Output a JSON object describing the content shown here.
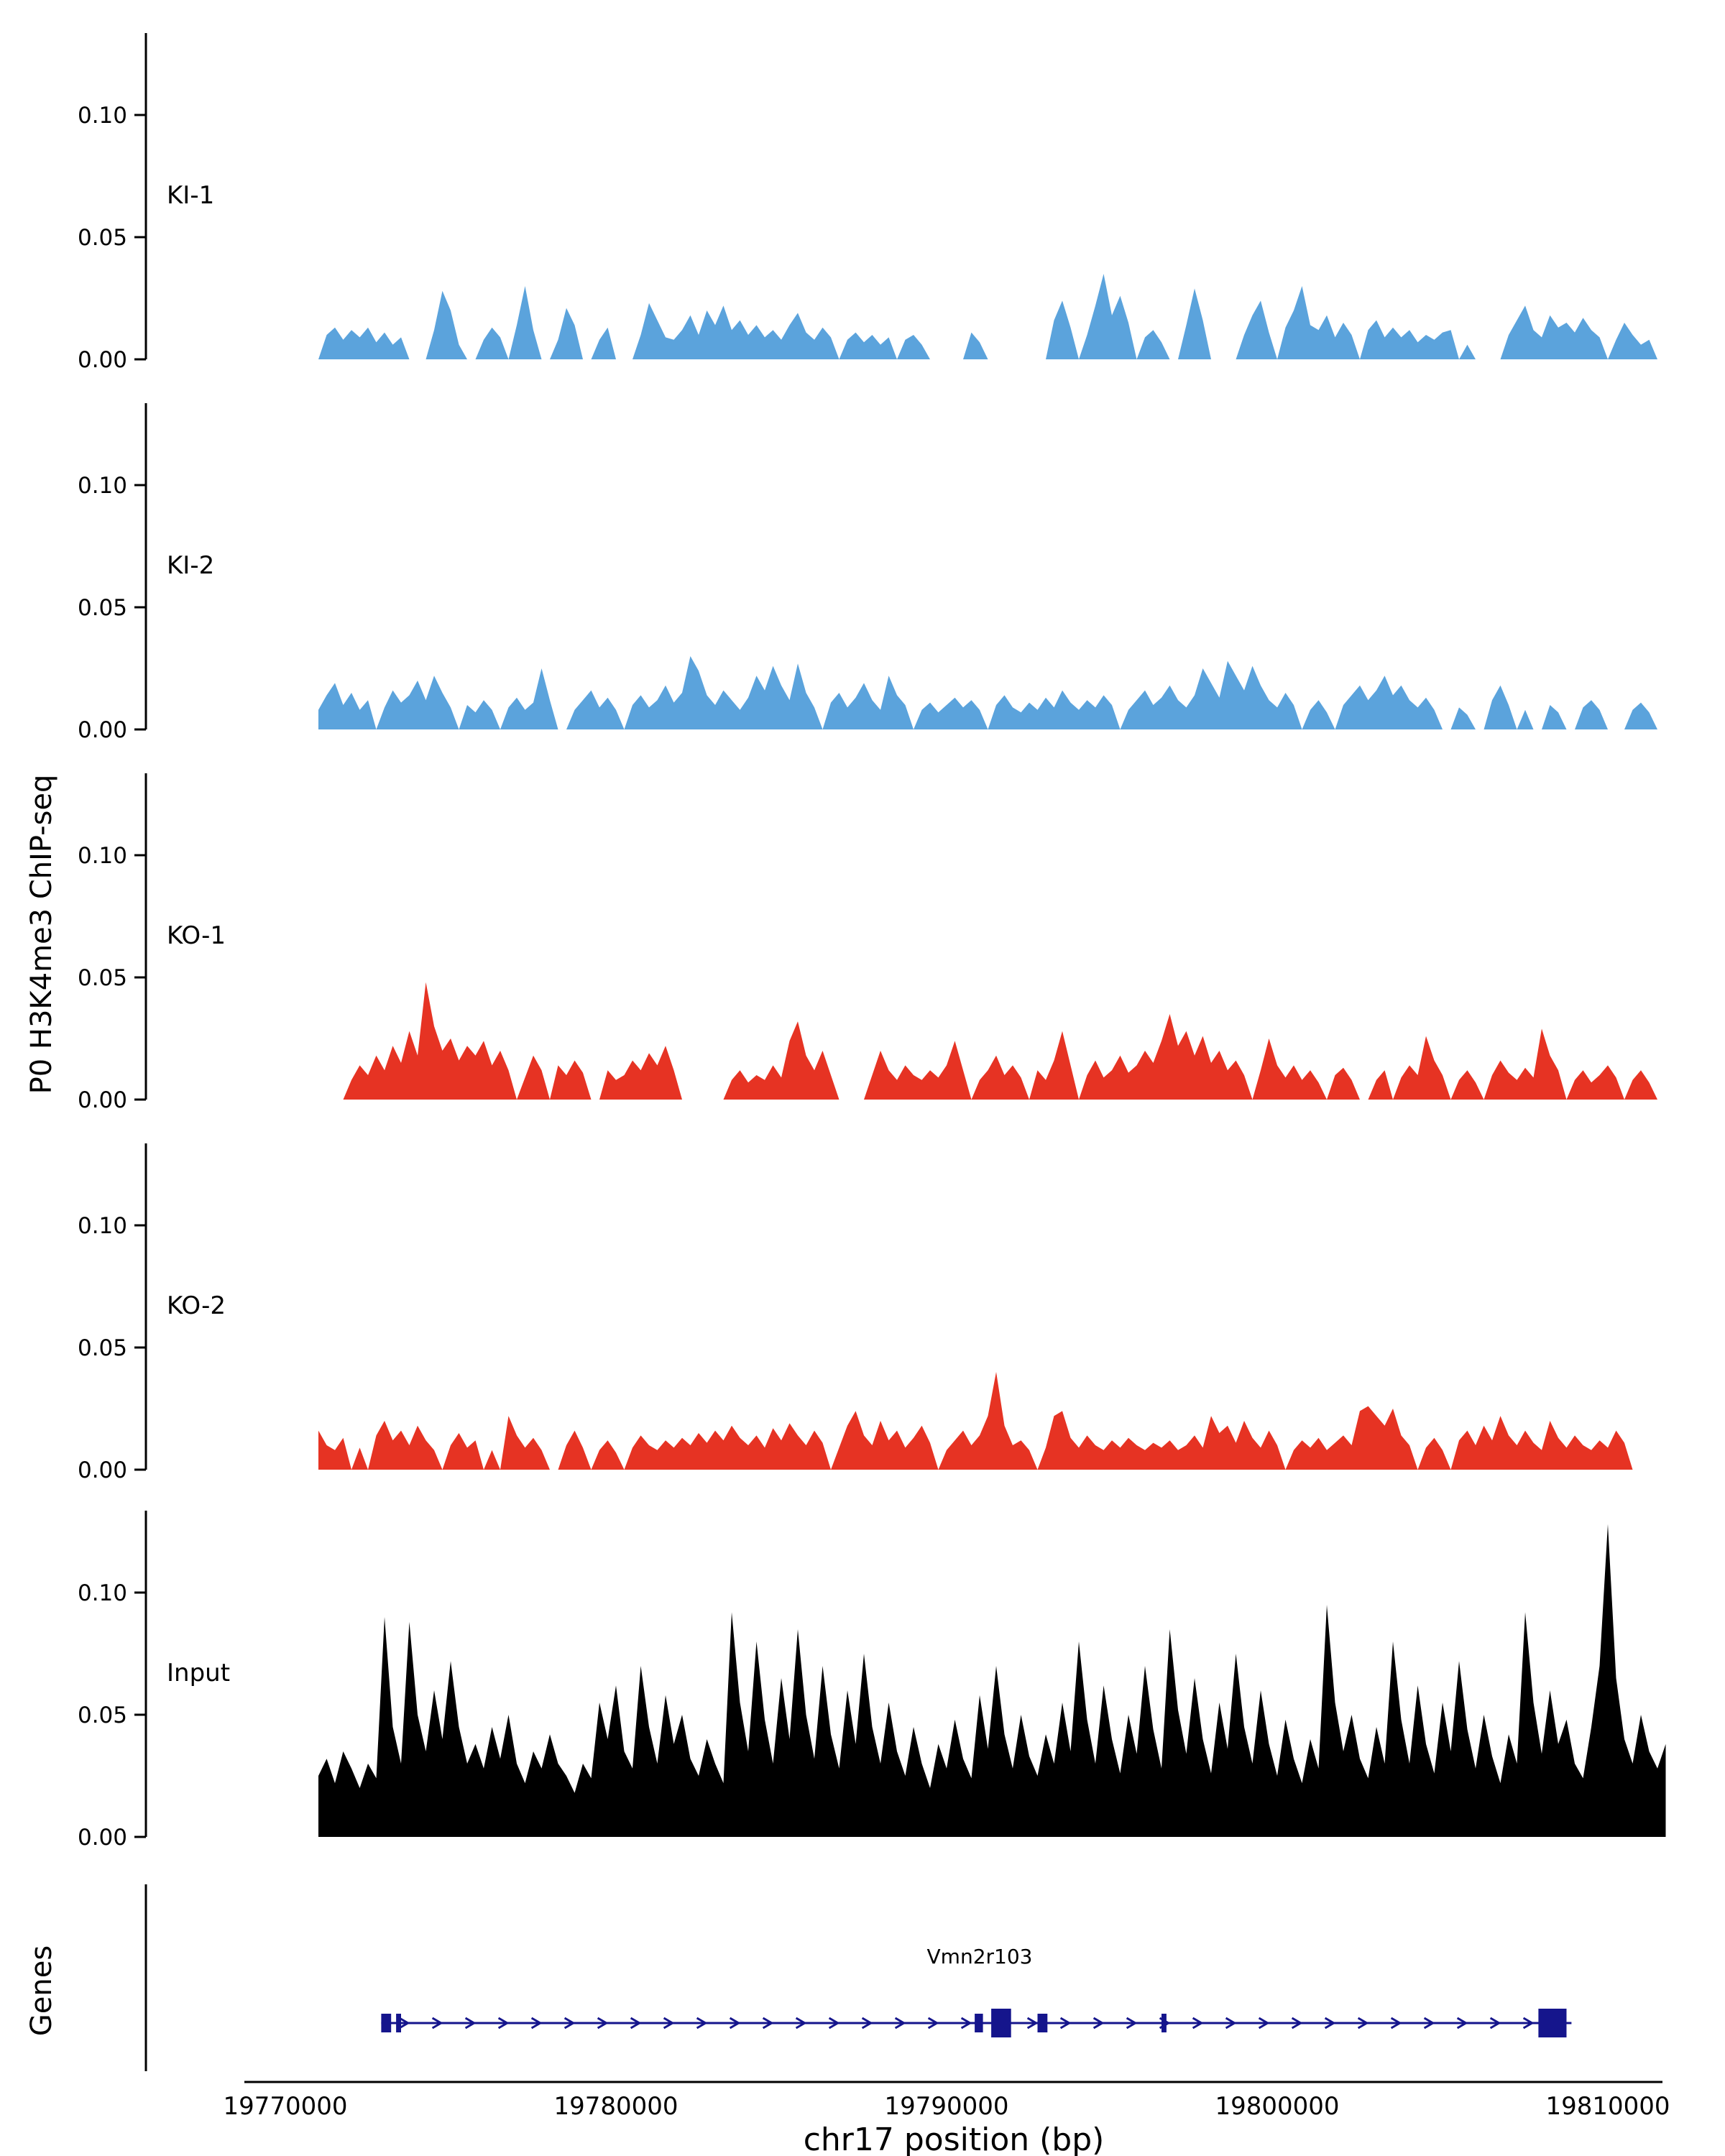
{
  "figure": {
    "ylabel_left": "P0 H3K4me3 ChIP-seq",
    "genes_label": "Genes",
    "xlabel": "chr17 position (bp)"
  },
  "chart_data": {
    "type": "area",
    "title": "",
    "xlabel": "chr17 position (bp)",
    "ylabel": "P0 H3K4me3 ChIP-seq",
    "legend": "none",
    "grid": false,
    "x_start": 19771000,
    "x_step": 250,
    "xlim": [
      19768500,
      19812000
    ],
    "ylim": [
      0,
      0.13
    ],
    "value_unit": 0.001,
    "x_ticks": [
      {
        "bp": 19770000,
        "label": "19770000"
      },
      {
        "bp": 19780000,
        "label": "19780000"
      },
      {
        "bp": 19790000,
        "label": "19790000"
      },
      {
        "bp": 19800000,
        "label": "19800000"
      },
      {
        "bp": 19810000,
        "label": "19810000"
      }
    ],
    "y_ticks": [
      {
        "value": 0.0,
        "label": "0.00"
      },
      {
        "value": 0.05,
        "label": "0.05"
      },
      {
        "value": 0.1,
        "label": "0.10"
      }
    ],
    "tracks": [
      {
        "label": "KI-1",
        "group": "KI",
        "color": "#5BA3DC",
        "values": [
          0,
          10,
          13,
          8,
          12,
          9,
          13,
          7,
          11,
          6,
          9,
          0,
          0,
          0,
          12,
          28,
          20,
          6,
          0,
          0,
          8,
          13,
          9,
          0,
          14,
          30,
          12,
          0,
          0,
          8,
          21,
          14,
          0,
          0,
          8,
          13,
          0,
          0,
          0,
          10,
          23,
          16,
          9,
          8,
          12,
          18,
          10,
          20,
          14,
          22,
          12,
          16,
          10,
          14,
          9,
          12,
          8,
          14,
          19,
          11,
          8,
          13,
          9,
          0,
          8,
          11,
          7,
          10,
          6,
          9,
          0,
          8,
          10,
          6,
          0,
          0,
          0,
          0,
          0,
          11,
          7,
          0,
          0,
          0,
          0,
          0,
          0,
          0,
          0,
          16,
          24,
          13,
          0,
          10,
          22,
          35,
          18,
          26,
          15,
          0,
          9,
          12,
          7,
          0,
          0,
          14,
          29,
          16,
          0,
          0,
          0,
          0,
          10,
          18,
          24,
          11,
          0,
          13,
          20,
          30,
          14,
          12,
          18,
          9,
          15,
          10,
          0,
          12,
          16,
          9,
          13,
          9,
          12,
          7,
          10,
          8,
          11,
          12,
          0,
          6,
          0,
          0,
          0,
          0,
          10,
          16,
          22,
          12,
          9,
          18,
          13,
          15,
          11,
          17,
          12,
          9,
          0,
          8,
          15,
          10,
          6,
          8,
          0,
          0
        ]
      },
      {
        "label": "KI-2",
        "group": "KI",
        "color": "#5BA3DC",
        "values": [
          8,
          14,
          19,
          10,
          15,
          8,
          12,
          0,
          9,
          16,
          11,
          14,
          20,
          12,
          22,
          15,
          9,
          0,
          10,
          7,
          12,
          8,
          0,
          9,
          13,
          8,
          11,
          25,
          12,
          0,
          0,
          8,
          12,
          16,
          9,
          13,
          8,
          0,
          10,
          14,
          9,
          12,
          18,
          11,
          15,
          30,
          24,
          14,
          10,
          16,
          12,
          8,
          13,
          22,
          16,
          26,
          18,
          12,
          27,
          15,
          9,
          0,
          11,
          15,
          9,
          13,
          19,
          12,
          8,
          22,
          14,
          10,
          0,
          8,
          11,
          7,
          10,
          13,
          9,
          12,
          8,
          0,
          10,
          14,
          9,
          7,
          11,
          8,
          13,
          9,
          16,
          11,
          8,
          12,
          9,
          14,
          10,
          0,
          8,
          12,
          16,
          10,
          13,
          18,
          12,
          9,
          14,
          25,
          19,
          13,
          28,
          22,
          16,
          26,
          18,
          12,
          9,
          15,
          10,
          0,
          8,
          12,
          7,
          0,
          10,
          14,
          18,
          12,
          16,
          22,
          14,
          18,
          12,
          9,
          13,
          8,
          0,
          0,
          9,
          6,
          0,
          0,
          12,
          18,
          10,
          0,
          8,
          0,
          0,
          10,
          7,
          0,
          0,
          9,
          12,
          8,
          0,
          0,
          0,
          8,
          11,
          7,
          0,
          0
        ]
      },
      {
        "label": "KO-1",
        "group": "KO",
        "color": "#E63323",
        "values": [
          0,
          0,
          0,
          0,
          8,
          14,
          10,
          18,
          12,
          22,
          15,
          28,
          18,
          48,
          30,
          20,
          25,
          16,
          22,
          18,
          24,
          14,
          20,
          12,
          0,
          9,
          18,
          12,
          0,
          14,
          10,
          16,
          11,
          0,
          0,
          12,
          8,
          10,
          16,
          12,
          19,
          14,
          22,
          12,
          0,
          0,
          0,
          0,
          0,
          0,
          8,
          12,
          7,
          10,
          8,
          14,
          9,
          24,
          32,
          18,
          12,
          20,
          10,
          0,
          0,
          0,
          0,
          10,
          20,
          12,
          8,
          14,
          10,
          8,
          12,
          9,
          14,
          24,
          12,
          0,
          8,
          12,
          18,
          10,
          14,
          9,
          0,
          12,
          8,
          16,
          28,
          14,
          0,
          10,
          16,
          9,
          12,
          18,
          11,
          14,
          20,
          15,
          24,
          35,
          22,
          28,
          18,
          26,
          15,
          20,
          12,
          16,
          10,
          0,
          12,
          25,
          14,
          9,
          14,
          8,
          12,
          7,
          0,
          10,
          13,
          8,
          0,
          0,
          8,
          12,
          0,
          9,
          14,
          10,
          26,
          16,
          10,
          0,
          8,
          12,
          7,
          0,
          10,
          16,
          11,
          8,
          13,
          9,
          29,
          18,
          12,
          0,
          8,
          12,
          7,
          10,
          14,
          9,
          0,
          8,
          12,
          7,
          0,
          0
        ]
      },
      {
        "label": "KO-2",
        "group": "KO",
        "color": "#E63323",
        "values": [
          16,
          10,
          8,
          13,
          0,
          9,
          0,
          14,
          20,
          12,
          16,
          10,
          18,
          12,
          8,
          0,
          10,
          15,
          9,
          12,
          0,
          8,
          0,
          22,
          14,
          9,
          13,
          8,
          0,
          0,
          10,
          16,
          9,
          0,
          8,
          12,
          7,
          0,
          9,
          14,
          10,
          8,
          12,
          9,
          13,
          10,
          15,
          11,
          16,
          12,
          18,
          13,
          10,
          14,
          9,
          17,
          12,
          19,
          14,
          10,
          16,
          11,
          0,
          9,
          18,
          24,
          14,
          10,
          20,
          12,
          16,
          9,
          13,
          18,
          11,
          0,
          8,
          12,
          16,
          10,
          14,
          22,
          40,
          18,
          10,
          12,
          8,
          0,
          9,
          22,
          24,
          13,
          9,
          14,
          10,
          8,
          12,
          9,
          13,
          10,
          8,
          11,
          9,
          12,
          8,
          10,
          14,
          9,
          22,
          15,
          18,
          11,
          20,
          13,
          9,
          16,
          10,
          0,
          8,
          12,
          9,
          13,
          8,
          11,
          14,
          10,
          24,
          26,
          22,
          18,
          25,
          14,
          10,
          0,
          9,
          13,
          8,
          0,
          12,
          16,
          10,
          18,
          12,
          22,
          14,
          10,
          16,
          11,
          8,
          20,
          13,
          9,
          14,
          10,
          8,
          12,
          9,
          16,
          11,
          0,
          0,
          0,
          0,
          0
        ]
      },
      {
        "label": "Input",
        "group": "Input",
        "color": "#000000",
        "values": [
          25,
          32,
          22,
          35,
          28,
          20,
          30,
          24,
          90,
          45,
          30,
          88,
          50,
          35,
          60,
          40,
          72,
          45,
          30,
          38,
          28,
          45,
          32,
          50,
          30,
          22,
          35,
          28,
          42,
          30,
          25,
          18,
          30,
          24,
          55,
          40,
          62,
          35,
          28,
          70,
          45,
          30,
          58,
          38,
          50,
          32,
          25,
          40,
          30,
          22,
          92,
          55,
          35,
          80,
          48,
          30,
          65,
          40,
          85,
          50,
          32,
          70,
          42,
          28,
          60,
          38,
          75,
          45,
          30,
          55,
          35,
          25,
          45,
          30,
          20,
          38,
          28,
          48,
          32,
          24,
          58,
          36,
          70,
          42,
          28,
          50,
          33,
          25,
          42,
          30,
          55,
          35,
          80,
          48,
          30,
          62,
          40,
          26,
          50,
          34,
          70,
          44,
          28,
          85,
          52,
          34,
          65,
          40,
          26,
          55,
          36,
          75,
          45,
          30,
          60,
          38,
          25,
          48,
          32,
          22,
          40,
          28,
          95,
          55,
          35,
          50,
          32,
          24,
          45,
          30,
          80,
          48,
          30,
          62,
          38,
          26,
          55,
          35,
          72,
          44,
          28,
          50,
          33,
          22,
          42,
          30,
          92,
          55,
          34,
          60,
          38,
          48,
          30,
          24,
          45,
          70,
          128,
          65,
          40,
          30,
          50,
          35,
          28,
          38
        ]
      }
    ]
  },
  "genes": {
    "panel_label": "Genes",
    "gene": {
      "name": "Vmn2r103",
      "strand": "+",
      "color": "#15158C",
      "line_start": 19772900,
      "line_end": 19808900,
      "arrow_spacing_bp": 1000,
      "exons": [
        {
          "start": 19772900,
          "end": 19773200,
          "tall": false
        },
        {
          "start": 19773350,
          "end": 19773500,
          "tall": false
        },
        {
          "start": 19790850,
          "end": 19791100,
          "tall": false
        },
        {
          "start": 19791350,
          "end": 19791950,
          "tall": true
        },
        {
          "start": 19792750,
          "end": 19793050,
          "tall": false
        },
        {
          "start": 19796500,
          "end": 19796650,
          "tall": false
        },
        {
          "start": 19807900,
          "end": 19808750,
          "tall": true
        }
      ]
    }
  }
}
